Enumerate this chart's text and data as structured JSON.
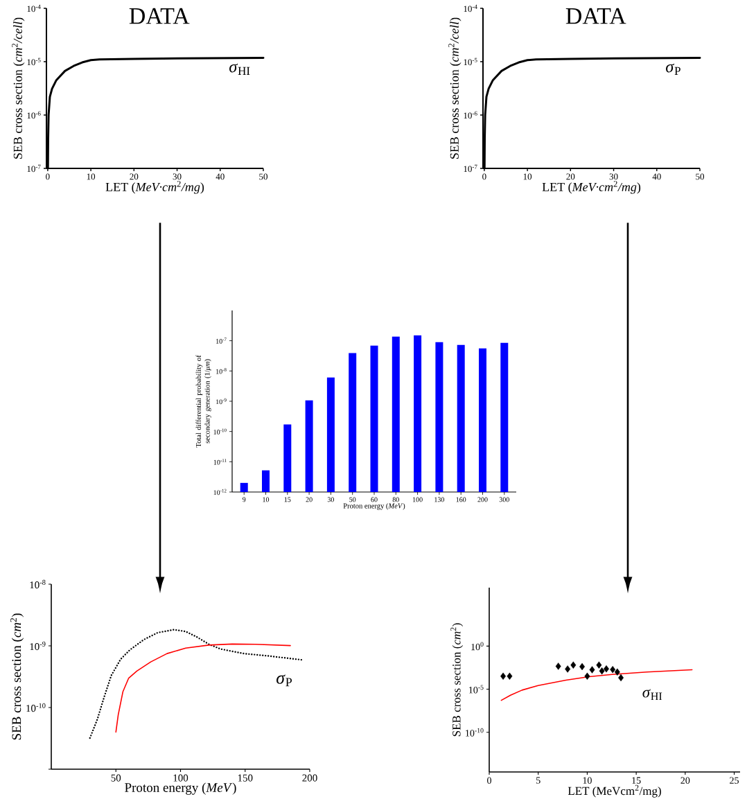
{
  "chart_data": [
    {
      "type": "line",
      "title": "DATA",
      "xlabel": "LET (*MeV·cm*$^{2}$*/mg*)",
      "ylabel": "SEB cross section (*cm*$^{2}$*/cell*)",
      "log": "y",
      "xlim": [
        -0.3,
        50
      ],
      "xticks": [
        0,
        10,
        20,
        30,
        40,
        50
      ],
      "ylim": [
        1e-07,
        0.0001
      ],
      "yticks": [
        {
          "value": 1e-07,
          "label": "10$^{-7}$"
        },
        {
          "value": 1e-06,
          "label": "10$^{-6}$"
        },
        {
          "value": 1e-05,
          "label": "10$^{-5}$"
        },
        {
          "value": 0.0001,
          "label": "10$^{-4}$"
        }
      ],
      "annotations": [
        "*σ*$_{HI}$"
      ],
      "series": [
        {
          "color": "#000000",
          "x": [
            0.05,
            0.1,
            0.2,
            0.5,
            1,
            2,
            4,
            6,
            8,
            10,
            12,
            20,
            30,
            50
          ],
          "values": [
            1e-07,
            3.6e-07,
            1e-06,
            2.2e-06,
            3.1e-06,
            4.5e-06,
            6.7e-06,
            8.3e-06,
            9.7e-06,
            1.07e-05,
            1.1e-05,
            1.13e-05,
            1.15e-05,
            1.18e-05
          ]
        }
      ]
    },
    {
      "type": "line",
      "title": "DATA",
      "xlabel": "LET (*MeV·cm*$^{2}$*/mg*)",
      "ylabel": "SEB cross section (*cm*$^{2}$*/cell*)",
      "log": "y",
      "xlim": [
        -0.3,
        50
      ],
      "xticks": [
        0,
        10,
        20,
        30,
        40,
        50
      ],
      "ylim": [
        1e-07,
        0.0001
      ],
      "yticks": [
        {
          "value": 1e-07,
          "label": "10$^{-7}$"
        },
        {
          "value": 1e-06,
          "label": "10$^{-6}$"
        },
        {
          "value": 1e-05,
          "label": "10$^{-5}$"
        },
        {
          "value": 0.0001,
          "label": "10$^{-4}$"
        }
      ],
      "annotations": [
        "*σ*$_{P}$"
      ],
      "series": [
        {
          "color": "#000000",
          "x": [
            0.05,
            0.1,
            0.2,
            0.5,
            1,
            2,
            4,
            6,
            8,
            10,
            12,
            20,
            30,
            50
          ],
          "values": [
            1e-07,
            3.6e-07,
            1e-06,
            2.2e-06,
            3.1e-06,
            4.5e-06,
            6.7e-06,
            8.3e-06,
            9.7e-06,
            1.07e-05,
            1.1e-05,
            1.13e-05,
            1.15e-05,
            1.18e-05
          ]
        }
      ]
    },
    {
      "type": "bar",
      "xlabel": "Proton energy (*MeV*)",
      "ylabel": "Total differential probability of secondary generation (1/*μm*)",
      "log": "y",
      "categories": [
        "9",
        "10",
        "15",
        "20",
        "30",
        "50",
        "60",
        "80",
        "100",
        "130",
        "160",
        "200",
        "300"
      ],
      "ylim": [
        1e-12,
        1e-06
      ],
      "yticks": [
        {
          "value": 1e-12,
          "label": "10$^{-12}$"
        },
        {
          "value": 1e-11,
          "label": "10$^{-11}$"
        },
        {
          "value": 1e-10,
          "label": "10$^{-10}$"
        },
        {
          "value": 1e-09,
          "label": "10$^{-9}$"
        },
        {
          "value": 1e-08,
          "label": "10$^{-8}$"
        },
        {
          "value": 1e-07,
          "label": "10$^{-7}$"
        }
      ],
      "color": "#0000ff",
      "values": [
        2e-12,
        5.2e-12,
        1.7e-10,
        1.07e-09,
        6.1e-09,
        3.9e-08,
        6.9e-08,
        1.37e-07,
        1.5e-07,
        9e-08,
        7.3e-08,
        5.6e-08,
        8.5e-08
      ]
    },
    {
      "type": "line",
      "xlabel": "Proton energy (*MeV*)",
      "ylabel": "SEB cross section (*cm*$^{2}$)",
      "log": "y",
      "xlim": [
        0,
        200
      ],
      "xticks": [
        50,
        100,
        150,
        200
      ],
      "ylim": [
        1e-11,
        1e-08
      ],
      "yticks": [
        {
          "value": 1e-11,
          "label": null
        },
        {
          "value": 1e-10,
          "label": "10$^{-10}$"
        },
        {
          "value": 1e-09,
          "label": "10$^{-9}$"
        },
        {
          "value": 1e-08,
          "label": "10$^{-8}$"
        }
      ],
      "annotations": [
        "*σ*$_{P}$"
      ],
      "series": [
        {
          "color": "#000000",
          "line_style": "dotted",
          "x": [
            29.9,
            35.6,
            41,
            46.4,
            53.6,
            60.8,
            71.6,
            82.4,
            95,
            104,
            113,
            122,
            131,
            149,
            167,
            195
          ],
          "values": [
            3.2e-11,
            6.4e-11,
            1.5e-10,
            3.3e-10,
            6.05e-10,
            8.6e-10,
            1.26e-09,
            1.64e-09,
            1.83e-09,
            1.71e-09,
            1.38e-09,
            1.06e-09,
            8.9e-10,
            7.5e-10,
            6.9e-10,
            5.9e-10
          ]
        },
        {
          "color": "#ff0000",
          "line_style": "solid",
          "x": [
            50,
            51.8,
            55.4,
            59.9,
            66.2,
            77,
            89.6,
            104,
            122,
            140,
            158,
            185
          ],
          "values": [
            4e-11,
            7.6e-11,
            1.8e-10,
            3e-10,
            3.9e-10,
            5.5e-10,
            7.5e-10,
            9.2e-10,
            1.03e-09,
            1.07e-09,
            1.06e-09,
            1.01e-09
          ]
        }
      ]
    },
    {
      "type": "line",
      "xlabel": "LET (MeVcm$^{2}$/mg)",
      "ylabel": "SEB cross section (*cm*$^{2}$)",
      "log": "y",
      "xlim": [
        0,
        25.6
      ],
      "xticks": [
        0,
        5,
        10,
        15,
        20,
        25
      ],
      "ylim": [
        2.5e-15,
        6000000.0
      ],
      "yticks": [
        {
          "value": 1e-10,
          "label": "10$^{-10}$"
        },
        {
          "value": 1e-05,
          "label": "10$^{-5}$"
        },
        {
          "value": 1,
          "label": "10$^{0}$"
        }
      ],
      "annotations": [
        "*σ*$_{HI}$"
      ],
      "series": [
        {
          "type": "scatter",
          "marker": "diamond",
          "color": "#000000",
          "x": [
            1.42,
            2.08,
            7.05,
            8.0,
            8.58,
            9.48,
            10.0,
            10.5,
            11.2,
            11.5,
            11.95,
            12.6,
            13.07,
            13.44
          ],
          "values": [
            0.00032,
            0.00032,
            0.0046,
            0.0022,
            0.0063,
            0.0041,
            0.00032,
            0.0018,
            0.0063,
            0.0013,
            0.0023,
            0.0019,
            0.00098,
            0.00021
          ]
        },
        {
          "type": "line",
          "color": "#ff0000",
          "x": [
            1.23,
            2.17,
            3.35,
            5,
            7.83,
            10.19,
            12.55,
            16.1,
            20.7
          ],
          "values": [
            5.1e-07,
            2e-06,
            7.8e-06,
            2.7e-05,
            0.00011,
            0.00028,
            0.00052,
            0.00098,
            0.0018
          ]
        }
      ]
    }
  ]
}
